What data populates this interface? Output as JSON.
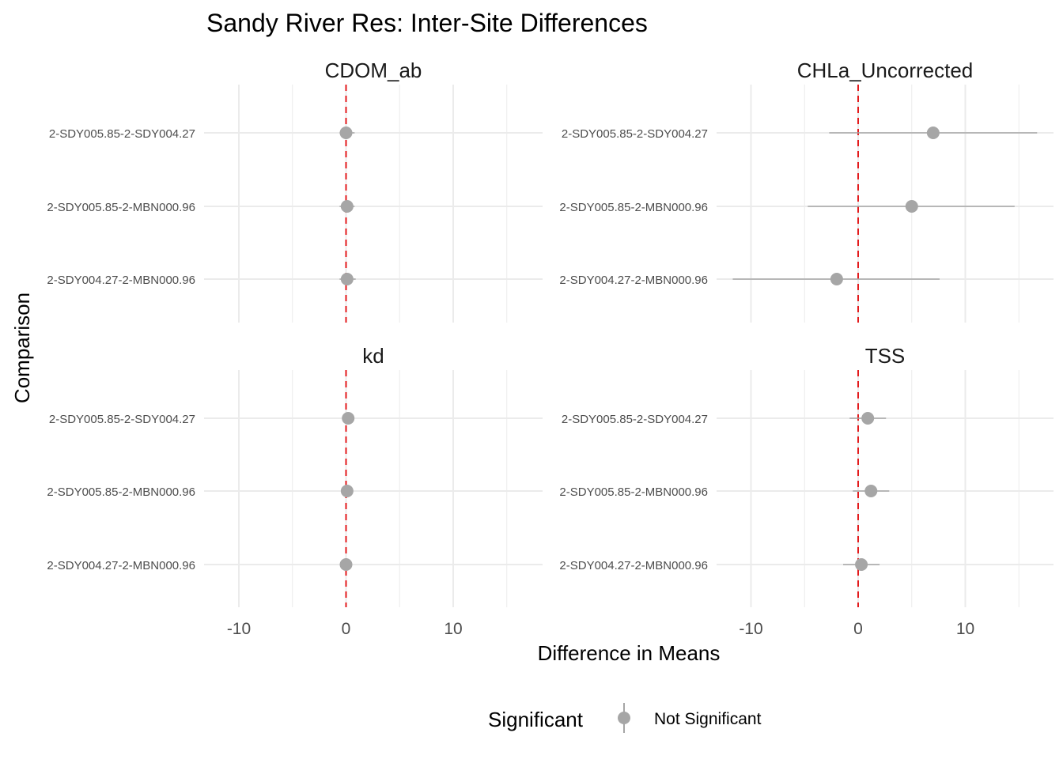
{
  "chart_data": {
    "type": "scatter",
    "title": "Sandy River Res: Inter-Site Differences",
    "xlabel": "Difference in Means",
    "ylabel": "Comparison",
    "xlim": [
      -13.5,
      18
    ],
    "x_ticks": [
      -10,
      0,
      10
    ],
    "x_tick_labels": [
      "-10",
      "0",
      "10"
    ],
    "reference_line": {
      "x": 0,
      "color": "#e31a1c",
      "style": "dashed"
    },
    "categories": [
      "2-SDY005.85-2-SDY004.27",
      "2-SDY005.85-2-MBN000.96",
      "2-SDY004.27-2-MBN000.96"
    ],
    "grid": true,
    "legend": {
      "title": "Significant",
      "placement": "bottom",
      "entries": [
        {
          "label": "Not Significant",
          "color": "#a6a6a6"
        }
      ]
    },
    "panels": [
      {
        "name": "CDOM_ab",
        "points": [
          {
            "comparison": "2-SDY005.85-2-SDY004.27",
            "estimate": 0.0,
            "lower": -0.6,
            "upper": 0.8
          },
          {
            "comparison": "2-SDY005.85-2-MBN000.96",
            "estimate": 0.1,
            "lower": -0.6,
            "upper": 0.8
          },
          {
            "comparison": "2-SDY004.27-2-MBN000.96",
            "estimate": 0.1,
            "lower": -0.6,
            "upper": 0.9
          }
        ]
      },
      {
        "name": "CHLa_Uncorrected",
        "points": [
          {
            "comparison": "2-SDY005.85-2-SDY004.27",
            "estimate": 7.0,
            "lower": -2.7,
            "upper": 16.7
          },
          {
            "comparison": "2-SDY005.85-2-MBN000.96",
            "estimate": 5.0,
            "lower": -4.7,
            "upper": 14.6
          },
          {
            "comparison": "2-SDY004.27-2-MBN000.96",
            "estimate": -2.0,
            "lower": -11.7,
            "upper": 7.6
          }
        ]
      },
      {
        "name": "kd",
        "points": [
          {
            "comparison": "2-SDY005.85-2-SDY004.27",
            "estimate": 0.2,
            "lower": 0.1,
            "upper": 0.3
          },
          {
            "comparison": "2-SDY005.85-2-MBN000.96",
            "estimate": 0.1,
            "lower": 0.0,
            "upper": 0.2
          },
          {
            "comparison": "2-SDY004.27-2-MBN000.96",
            "estimate": 0.0,
            "lower": -0.1,
            "upper": 0.1
          }
        ]
      },
      {
        "name": "TSS",
        "points": [
          {
            "comparison": "2-SDY005.85-2-SDY004.27",
            "estimate": 0.9,
            "lower": -0.8,
            "upper": 2.6
          },
          {
            "comparison": "2-SDY005.85-2-MBN000.96",
            "estimate": 1.2,
            "lower": -0.5,
            "upper": 2.9
          },
          {
            "comparison": "2-SDY004.27-2-MBN000.96",
            "estimate": 0.3,
            "lower": -1.4,
            "upper": 2.0
          }
        ]
      }
    ]
  }
}
